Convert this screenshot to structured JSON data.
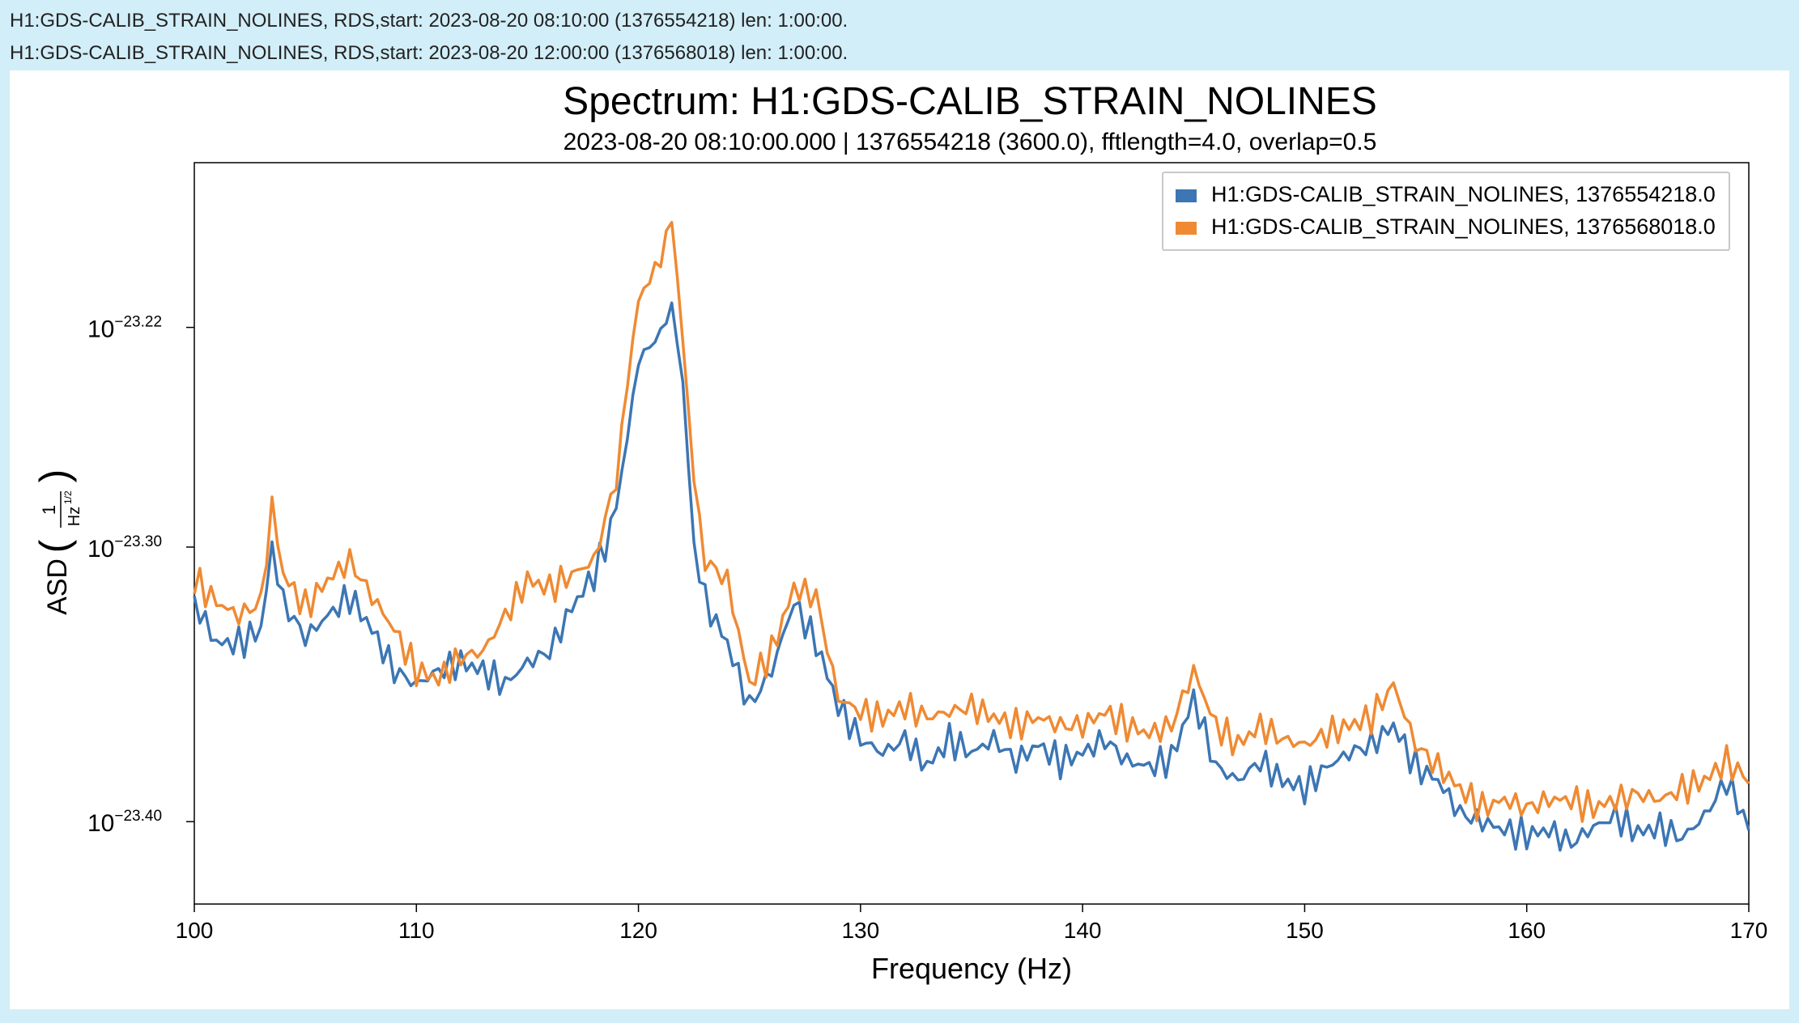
{
  "header": {
    "line1": "H1:GDS-CALIB_STRAIN_NOLINES, RDS,start: 2023-08-20 08:10:00 (1376554218) len: 1:00:00.",
    "line2": "H1:GDS-CALIB_STRAIN_NOLINES, RDS,start: 2023-08-20 12:00:00 (1376568018) len: 1:00:00."
  },
  "colors": {
    "background": "#d2eef8",
    "series1": "#3c76b4",
    "series2": "#ef8a33"
  },
  "chart_data": {
    "type": "line",
    "title": "Spectrum: H1:GDS-CALIB_STRAIN_NOLINES",
    "subtitle": "2023-08-20 08:10:00.000 | 1376554218 (3600.0), fftlength=4.0, overlap=0.5",
    "xlabel": "Frequency (Hz)",
    "ylabel_main": "ASD",
    "ylabel_frac_num": "1",
    "ylabel_frac_den": "Hz",
    "ylabel_frac_exp": "1/2",
    "xlim": [
      100,
      170
    ],
    "ylim_log10": [
      -23.43,
      -23.16
    ],
    "yscale": "log",
    "xticks": [
      100,
      110,
      120,
      130,
      140,
      150,
      160,
      170
    ],
    "yticks": [
      {
        "value": -23.22,
        "base": "10",
        "exp": "−23.22"
      },
      {
        "value": -23.3,
        "base": "10",
        "exp": "−23.30"
      },
      {
        "value": -23.4,
        "base": "10",
        "exp": "−23.40"
      }
    ],
    "legend_position": "top-right",
    "grid": false,
    "series": [
      {
        "name": "H1:GDS-CALIB_STRAIN_NOLINES, 1376554218.0",
        "color": "#3c76b4",
        "keypoints": [
          [
            100,
            -23.32
          ],
          [
            101,
            -23.335
          ],
          [
            102,
            -23.335
          ],
          [
            103,
            -23.33
          ],
          [
            103.5,
            -23.3
          ],
          [
            104,
            -23.32
          ],
          [
            105,
            -23.333
          ],
          [
            106,
            -23.325
          ],
          [
            107,
            -23.318
          ],
          [
            108,
            -23.33
          ],
          [
            109,
            -23.345
          ],
          [
            110,
            -23.35
          ],
          [
            111,
            -23.345
          ],
          [
            112,
            -23.342
          ],
          [
            113,
            -23.345
          ],
          [
            114,
            -23.35
          ],
          [
            115,
            -23.342
          ],
          [
            116,
            -23.338
          ],
          [
            117,
            -23.322
          ],
          [
            118,
            -23.31
          ],
          [
            118.5,
            -23.3
          ],
          [
            119,
            -23.285
          ],
          [
            119.5,
            -23.26
          ],
          [
            120,
            -23.232
          ],
          [
            121,
            -23.222
          ],
          [
            121.5,
            -23.212
          ],
          [
            122,
            -23.24
          ],
          [
            122.5,
            -23.3
          ],
          [
            123,
            -23.32
          ],
          [
            124,
            -23.335
          ],
          [
            125,
            -23.358
          ],
          [
            126,
            -23.345
          ],
          [
            127,
            -23.32
          ],
          [
            128,
            -23.335
          ],
          [
            129,
            -23.358
          ],
          [
            130,
            -23.37
          ],
          [
            131,
            -23.375
          ],
          [
            132,
            -23.37
          ],
          [
            133,
            -23.38
          ],
          [
            134,
            -23.37
          ],
          [
            135,
            -23.375
          ],
          [
            136,
            -23.37
          ],
          [
            137,
            -23.378
          ],
          [
            138,
            -23.372
          ],
          [
            139,
            -23.378
          ],
          [
            140,
            -23.375
          ],
          [
            141,
            -23.37
          ],
          [
            142,
            -23.378
          ],
          [
            143,
            -23.38
          ],
          [
            144,
            -23.377
          ],
          [
            145,
            -23.355
          ],
          [
            146,
            -23.38
          ],
          [
            147,
            -23.385
          ],
          [
            148,
            -23.378
          ],
          [
            149,
            -23.385
          ],
          [
            150,
            -23.388
          ],
          [
            151,
            -23.38
          ],
          [
            152,
            -23.375
          ],
          [
            153,
            -23.372
          ],
          [
            154,
            -23.365
          ],
          [
            155,
            -23.38
          ],
          [
            156,
            -23.385
          ],
          [
            157,
            -23.397
          ],
          [
            158,
            -23.4
          ],
          [
            159,
            -23.403
          ],
          [
            160,
            -23.405
          ],
          [
            161,
            -23.403
          ],
          [
            162,
            -23.408
          ],
          [
            163,
            -23.402
          ],
          [
            164,
            -23.398
          ],
          [
            165,
            -23.404
          ],
          [
            166,
            -23.402
          ],
          [
            167,
            -23.406
          ],
          [
            168,
            -23.398
          ],
          [
            169,
            -23.385
          ],
          [
            170,
            -23.402
          ]
        ]
      },
      {
        "name": "H1:GDS-CALIB_STRAIN_NOLINES, 1376568018.0",
        "color": "#ef8a33",
        "keypoints": [
          [
            100,
            -23.312
          ],
          [
            101,
            -23.32
          ],
          [
            102,
            -23.325
          ],
          [
            103,
            -23.32
          ],
          [
            103.5,
            -23.285
          ],
          [
            104,
            -23.31
          ],
          [
            105,
            -23.322
          ],
          [
            106,
            -23.312
          ],
          [
            107,
            -23.305
          ],
          [
            108,
            -23.318
          ],
          [
            109,
            -23.33
          ],
          [
            110,
            -23.345
          ],
          [
            111,
            -23.348
          ],
          [
            112,
            -23.34
          ],
          [
            113,
            -23.338
          ],
          [
            114,
            -23.325
          ],
          [
            115,
            -23.312
          ],
          [
            116,
            -23.315
          ],
          [
            117,
            -23.31
          ],
          [
            118,
            -23.305
          ],
          [
            119,
            -23.275
          ],
          [
            119.5,
            -23.24
          ],
          [
            120,
            -23.21
          ],
          [
            121,
            -23.195
          ],
          [
            121.5,
            -23.18
          ],
          [
            122,
            -23.225
          ],
          [
            122.5,
            -23.275
          ],
          [
            123,
            -23.305
          ],
          [
            124,
            -23.312
          ],
          [
            125,
            -23.35
          ],
          [
            126,
            -23.338
          ],
          [
            127,
            -23.315
          ],
          [
            128,
            -23.318
          ],
          [
            129,
            -23.355
          ],
          [
            130,
            -23.36
          ],
          [
            131,
            -23.362
          ],
          [
            132,
            -23.358
          ],
          [
            133,
            -23.362
          ],
          [
            134,
            -23.36
          ],
          [
            135,
            -23.358
          ],
          [
            136,
            -23.362
          ],
          [
            137,
            -23.365
          ],
          [
            138,
            -23.362
          ],
          [
            139,
            -23.365
          ],
          [
            140,
            -23.365
          ],
          [
            141,
            -23.36
          ],
          [
            142,
            -23.365
          ],
          [
            143,
            -23.368
          ],
          [
            144,
            -23.365
          ],
          [
            145,
            -23.345
          ],
          [
            146,
            -23.365
          ],
          [
            147,
            -23.372
          ],
          [
            148,
            -23.365
          ],
          [
            149,
            -23.37
          ],
          [
            150,
            -23.372
          ],
          [
            151,
            -23.368
          ],
          [
            152,
            -23.365
          ],
          [
            153,
            -23.362
          ],
          [
            154,
            -23.35
          ],
          [
            155,
            -23.372
          ],
          [
            156,
            -23.38
          ],
          [
            157,
            -23.388
          ],
          [
            158,
            -23.395
          ],
          [
            159,
            -23.392
          ],
          [
            160,
            -23.395
          ],
          [
            161,
            -23.392
          ],
          [
            162,
            -23.392
          ],
          [
            163,
            -23.395
          ],
          [
            164,
            -23.392
          ],
          [
            165,
            -23.39
          ],
          [
            166,
            -23.392
          ],
          [
            167,
            -23.388
          ],
          [
            168,
            -23.385
          ],
          [
            169,
            -23.378
          ],
          [
            170,
            -23.385
          ]
        ]
      }
    ]
  }
}
